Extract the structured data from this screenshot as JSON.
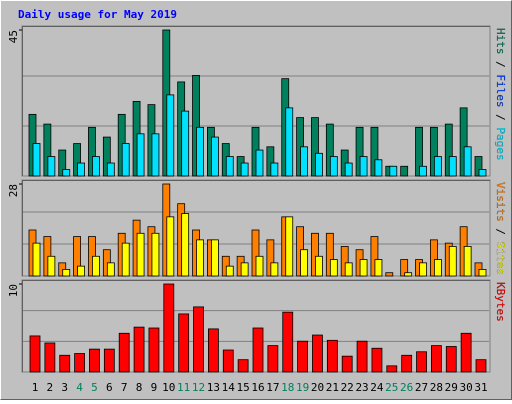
{
  "title": "Daily usage for May 2019",
  "legend_separator": " / ",
  "chart_data": [
    {
      "type": "bar",
      "ylim": [
        0,
        45
      ],
      "yticks": [
        45
      ],
      "series": [
        {
          "name": "Hits",
          "color": "#00805c",
          "values": [
            19,
            16,
            8,
            10,
            15,
            12,
            19,
            23,
            22,
            45,
            29,
            31,
            15,
            10,
            6,
            15,
            9,
            30,
            18,
            18,
            16,
            8,
            15,
            15,
            3,
            3,
            15,
            15,
            16,
            21,
            6
          ]
        },
        {
          "name": "Files",
          "color": "#0040ff",
          "values": [
            null,
            null,
            null,
            null,
            null,
            null,
            null,
            null,
            null,
            null,
            null,
            null,
            null,
            null,
            null,
            null,
            null,
            null,
            null,
            null,
            null,
            null,
            null,
            null,
            null,
            null,
            null,
            null,
            null,
            null,
            null
          ]
        },
        {
          "name": "Pages",
          "color": "#00e0ff",
          "values": [
            10,
            6,
            2,
            4,
            6,
            4,
            10,
            13,
            13,
            25,
            20,
            15,
            12,
            6,
            4,
            8,
            4,
            21,
            9,
            7,
            6,
            4,
            6,
            5,
            3,
            0,
            3,
            6,
            6,
            9,
            2
          ]
        }
      ]
    },
    {
      "type": "bar",
      "ylim": [
        0,
        28
      ],
      "yticks": [
        28
      ],
      "series": [
        {
          "name": "Visits",
          "color": "#ff8000",
          "values": [
            14,
            12,
            4,
            12,
            12,
            8,
            13,
            17,
            15,
            28,
            22,
            14,
            11,
            6,
            6,
            14,
            11,
            18,
            15,
            13,
            13,
            9,
            8,
            12,
            1,
            5,
            5,
            11,
            10,
            15,
            4
          ]
        },
        {
          "name": "Sites",
          "color": "#ffff00",
          "values": [
            10,
            6,
            2,
            3,
            6,
            4,
            10,
            13,
            13,
            18,
            19,
            11,
            11,
            3,
            4,
            6,
            4,
            18,
            8,
            6,
            5,
            4,
            5,
            5,
            0,
            1,
            4,
            5,
            9,
            9,
            2
          ]
        }
      ]
    },
    {
      "type": "bar",
      "ylim": [
        0,
        10
      ],
      "yticks": [
        10
      ],
      "categories": [
        "1",
        "2",
        "3",
        "4",
        "5",
        "6",
        "7",
        "8",
        "9",
        "10",
        "11",
        "12",
        "13",
        "14",
        "15",
        "16",
        "17",
        "18",
        "19",
        "20",
        "21",
        "22",
        "23",
        "24",
        "25",
        "26",
        "27",
        "28",
        "29",
        "30",
        "31"
      ],
      "highlight_categories": [
        3,
        4,
        10,
        11,
        17,
        18,
        24,
        25
      ],
      "highlight_color": "#00805c",
      "series": [
        {
          "name": "KBytes",
          "color": "#ff0000",
          "values": [
            4.1,
            3.3,
            1.9,
            2.1,
            2.6,
            2.6,
            4.4,
            5.1,
            5.0,
            10,
            6.6,
            7.4,
            4.9,
            2.5,
            1.4,
            5.0,
            3.0,
            6.8,
            3.5,
            4.2,
            3.6,
            1.8,
            3.5,
            2.7,
            0.7,
            1.9,
            2.3,
            3.0,
            2.9,
            4.4,
            1.4
          ]
        }
      ]
    }
  ]
}
